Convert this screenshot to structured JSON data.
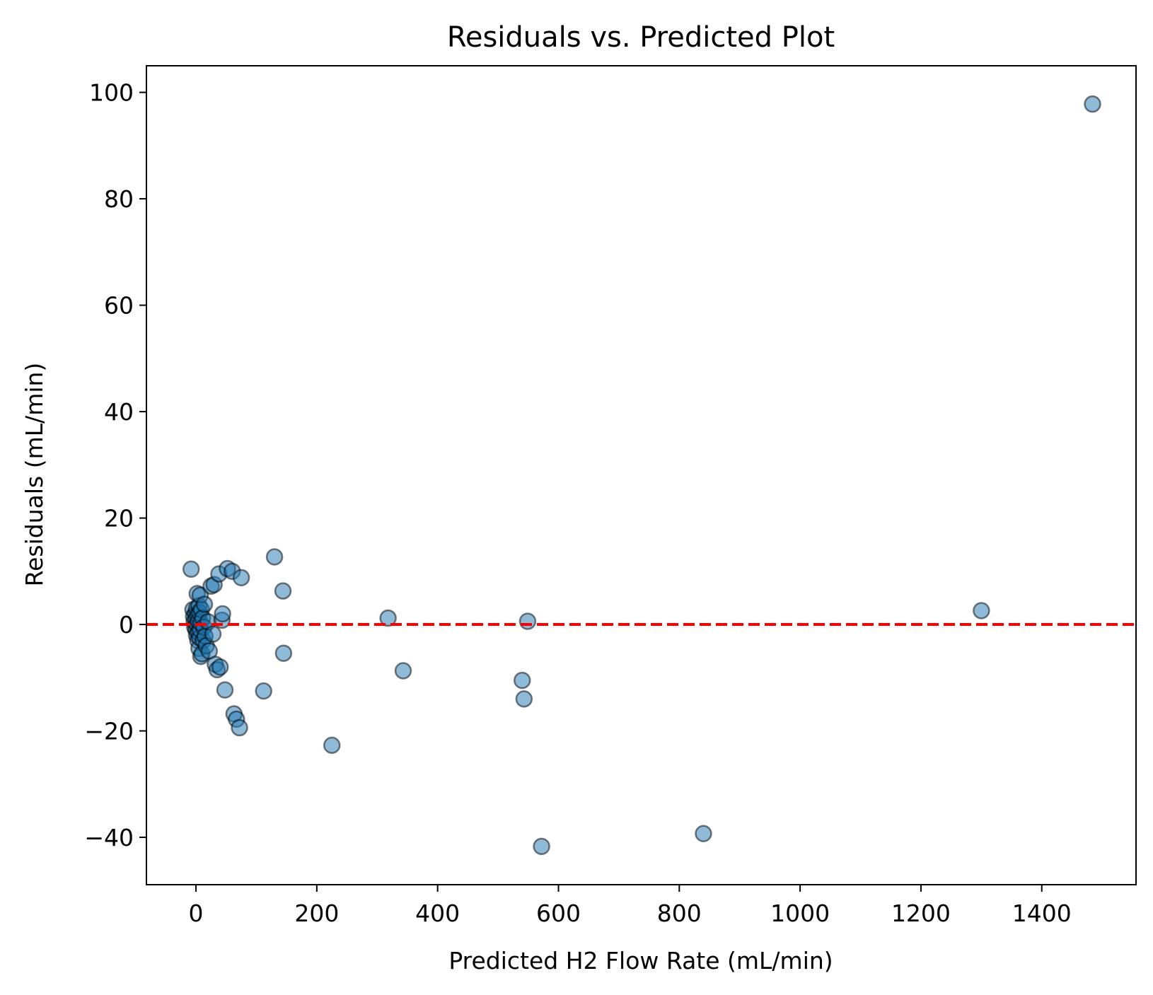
{
  "chart_data": {
    "type": "scatter",
    "title": "Residuals vs. Predicted Plot",
    "xlabel": "Predicted H2 Flow Rate (mL/min)",
    "ylabel": "Residuals (mL/min)",
    "xlim": [
      -82,
      1556
    ],
    "ylim": [
      -48.9,
      105
    ],
    "xticks": [
      0,
      200,
      400,
      600,
      800,
      1000,
      1200,
      1400
    ],
    "yticks": [
      -40,
      -20,
      0,
      20,
      40,
      60,
      80,
      100
    ],
    "xtick_labels": [
      "0",
      "200",
      "400",
      "600",
      "800",
      "1000",
      "1200",
      "1400"
    ],
    "ytick_labels": [
      "−40",
      "−20",
      "0",
      "20",
      "40",
      "60",
      "80",
      "100"
    ],
    "grid": false,
    "reference_line": {
      "y": 0,
      "style": "dashed",
      "color": "#ff0000"
    },
    "marker_color": "#1f77b4",
    "marker_edge_color": "#000000",
    "marker_alpha": 0.5,
    "points": [
      [
        -8,
        10.4
      ],
      [
        -5,
        2.8
      ],
      [
        -4,
        1.5
      ],
      [
        -3,
        0.5
      ],
      [
        -2,
        -0.5
      ],
      [
        -1,
        2.0
      ],
      [
        0,
        1.0
      ],
      [
        0,
        -1.0
      ],
      [
        1,
        3.0
      ],
      [
        1,
        -2.0
      ],
      [
        2,
        0.0
      ],
      [
        2,
        5.8
      ],
      [
        3,
        -3.0
      ],
      [
        3,
        1.8
      ],
      [
        4,
        -1.5
      ],
      [
        4,
        0.6
      ],
      [
        5,
        3.5
      ],
      [
        5,
        -4.5
      ],
      [
        6,
        2.2
      ],
      [
        6,
        -2.5
      ],
      [
        7,
        5.5
      ],
      [
        7,
        -1.0
      ],
      [
        8,
        0.3
      ],
      [
        8,
        -6.0
      ],
      [
        9,
        2.8
      ],
      [
        10,
        -5.5
      ],
      [
        11,
        1.2
      ],
      [
        12,
        -3.0
      ],
      [
        13,
        -0.5
      ],
      [
        14,
        3.8
      ],
      [
        15,
        -2.2
      ],
      [
        17,
        -4.0
      ],
      [
        20,
        0.5
      ],
      [
        22,
        -5.0
      ],
      [
        25,
        7.2
      ],
      [
        28,
        -1.8
      ],
      [
        30,
        7.5
      ],
      [
        32,
        -7.5
      ],
      [
        35,
        -8.5
      ],
      [
        38,
        9.5
      ],
      [
        40,
        -8.0
      ],
      [
        43,
        0.8
      ],
      [
        44,
        2.0
      ],
      [
        48,
        -12.3
      ],
      [
        52,
        10.5
      ],
      [
        60,
        10.0
      ],
      [
        63,
        -16.8
      ],
      [
        67,
        -17.8
      ],
      [
        72,
        -19.4
      ],
      [
        75,
        8.8
      ],
      [
        112,
        -12.5
      ],
      [
        130,
        12.7
      ],
      [
        144,
        6.3
      ],
      [
        145,
        -5.4
      ],
      [
        225,
        -22.7
      ],
      [
        318,
        1.2
      ],
      [
        343,
        -8.7
      ],
      [
        540,
        -10.5
      ],
      [
        543,
        -14.0
      ],
      [
        549,
        0.6
      ],
      [
        572,
        -41.7
      ],
      [
        840,
        -39.3
      ],
      [
        1300,
        2.6
      ],
      [
        1484,
        97.8
      ]
    ]
  }
}
